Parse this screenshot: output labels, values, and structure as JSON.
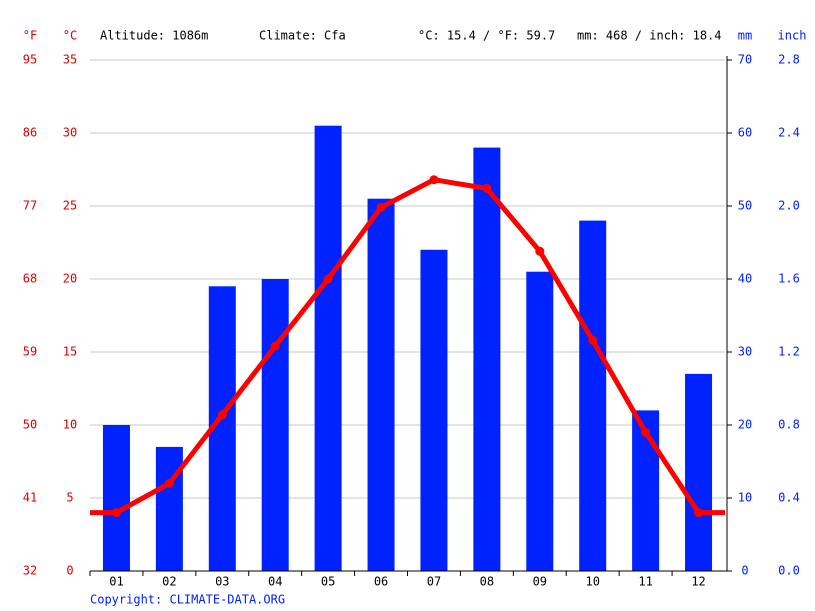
{
  "chart_data": {
    "type": "bar",
    "categories": [
      "01",
      "02",
      "03",
      "04",
      "05",
      "06",
      "07",
      "08",
      "09",
      "10",
      "11",
      "12"
    ],
    "ylabel": "°C",
    "ylim": [
      0,
      35
    ],
    "yticks": [
      0,
      5,
      10,
      15,
      20,
      25,
      30,
      35
    ],
    "y_f": {
      "label": "°F",
      "lim": [
        32,
        95
      ],
      "ticks": [
        32,
        41,
        50,
        59,
        68,
        77,
        86,
        95
      ]
    },
    "y2label": "mm",
    "y2lim": [
      0,
      70
    ],
    "y2ticks": [
      0,
      10,
      20,
      30,
      40,
      50,
      60,
      70
    ],
    "y_inch": {
      "label": "inch",
      "lim": [
        0,
        2.8
      ],
      "ticks": [
        {
          "value": 0,
          "label": "0.0"
        },
        0.4,
        0.8,
        1.2,
        1.6,
        {
          "value": 2,
          "label": "2.0"
        },
        2.4,
        2.8
      ]
    },
    "series": [
      {
        "type": "bar",
        "axis": "y2",
        "color": "#0022ff",
        "values": [
          20,
          17,
          39,
          40,
          61,
          51,
          44,
          58,
          41,
          48,
          22,
          27
        ]
      },
      {
        "type": "line",
        "axis": "y",
        "color": "#ff0000",
        "values": [
          4.0,
          6.0,
          10.7,
          15.4,
          20.0,
          24.9,
          26.8,
          26.2,
          21.9,
          15.8,
          9.5,
          4.0
        ]
      }
    ],
    "annotations": [
      "Altitude: 1086m",
      "Climate: Cfa",
      "°C: 15.4 / °F: 59.7",
      "mm: 468 / inch: 18.4"
    ],
    "source": "Copyright: CLIMATE-DATA.ORG",
    "grid": true
  }
}
